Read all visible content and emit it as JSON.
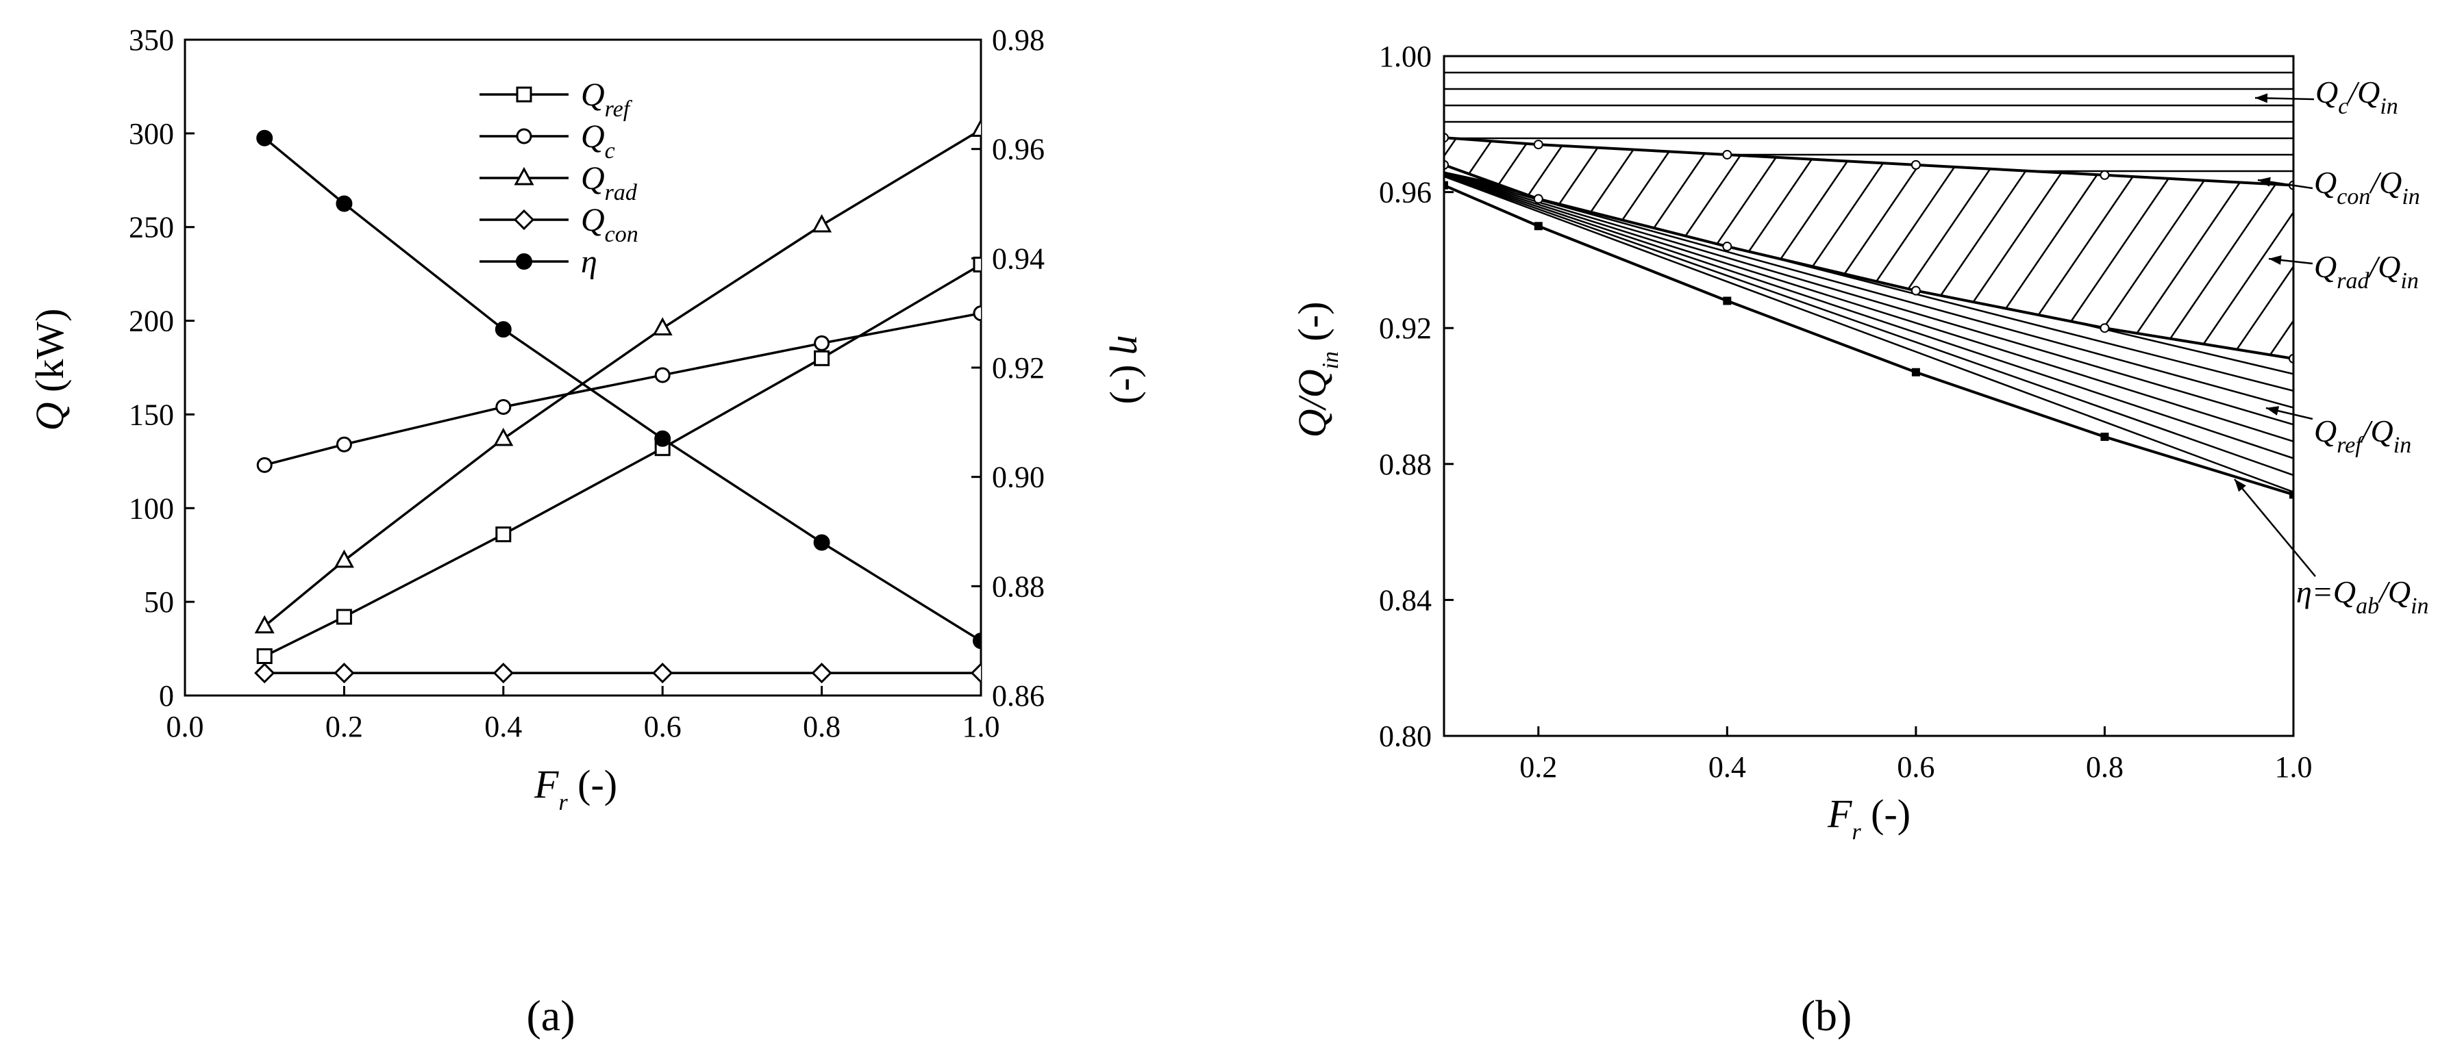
{
  "chart_data": [
    {
      "panel": "(a)",
      "type": "line",
      "xlabel": "F_r (-)",
      "x_label_main": "F",
      "x_label_sub": "r",
      "x_label_unit": " (-)",
      "ylabel": "Q (kW)",
      "y_label_main": "Q",
      "y_label_unit": " (kW)",
      "y2label": "η (-)",
      "y2_label_main": "η",
      "y2_label_unit": " (-)",
      "xlim": [
        0.0,
        1.0
      ],
      "ylim": [
        0,
        350
      ],
      "y2lim": [
        0.86,
        0.98
      ],
      "xticks": [
        "0.0",
        "0.2",
        "0.4",
        "0.6",
        "0.8",
        "1.0"
      ],
      "yticks": [
        "0",
        "50",
        "100",
        "150",
        "200",
        "250",
        "300",
        "350"
      ],
      "y2ticks": [
        "0.86",
        "0.88",
        "0.90",
        "0.92",
        "0.94",
        "0.96",
        "0.98"
      ],
      "x": [
        0.1,
        0.2,
        0.4,
        0.6,
        0.8,
        1.0
      ],
      "series": [
        {
          "name": "Q_ref",
          "label_main": "Q",
          "label_sub": "ref",
          "marker": "square",
          "axis": "left",
          "values": [
            21,
            42,
            86,
            132,
            180,
            230
          ]
        },
        {
          "name": "Q_c",
          "label_main": "Q",
          "label_sub": "c",
          "marker": "circle",
          "axis": "left",
          "values": [
            123,
            134,
            154,
            171,
            188,
            204
          ]
        },
        {
          "name": "Q_rad",
          "label_main": "Q",
          "label_sub": "rad",
          "marker": "triangle",
          "axis": "left",
          "values": [
            37,
            72,
            137,
            196,
            251,
            302
          ]
        },
        {
          "name": "Q_con",
          "label_main": "Q",
          "label_sub": "con",
          "marker": "diamond",
          "axis": "left",
          "values": [
            12,
            12,
            12,
            12,
            12,
            12
          ]
        },
        {
          "name": "η",
          "label_main": "η",
          "label_sub": "",
          "marker": "filled-circle",
          "axis": "right",
          "values": [
            0.962,
            0.95,
            0.927,
            0.907,
            0.888,
            0.87
          ]
        }
      ],
      "legend_position": "top-center"
    },
    {
      "panel": "(b)",
      "type": "area",
      "xlabel": "F_r (-)",
      "x_label_main": "F",
      "x_label_sub": "r",
      "x_label_unit": " (-)",
      "ylabel": "Q/Q_in (-)",
      "y_label_main": "Q/Q",
      "y_label_sub": "in",
      "y_label_unit": " (-)",
      "xlim": [
        0.1,
        1.0
      ],
      "ylim": [
        0.8,
        1.0
      ],
      "xticks": [
        "0.2",
        "0.4",
        "0.6",
        "0.8",
        "1.0"
      ],
      "yticks": [
        "0.80",
        "0.84",
        "0.88",
        "0.92",
        "0.96",
        "1.00"
      ],
      "x": [
        0.1,
        0.2,
        0.4,
        0.6,
        0.8,
        1.0
      ],
      "boundaries": [
        {
          "name": "top",
          "values": [
            1.0,
            1.0,
            1.0,
            1.0,
            1.0,
            1.0
          ]
        },
        {
          "name": "upper",
          "values": [
            0.976,
            0.974,
            0.971,
            0.968,
            0.965,
            0.962
          ]
        },
        {
          "name": "middle",
          "values": [
            0.968,
            0.958,
            0.944,
            0.931,
            0.92,
            0.911
          ]
        },
        {
          "name": "lower",
          "values": [
            0.962,
            0.95,
            0.928,
            0.907,
            0.888,
            0.871
          ]
        }
      ],
      "annotations": [
        {
          "main": "Q",
          "sub1": "c",
          "sep": "/Q",
          "sub2": "in"
        },
        {
          "main": "Q",
          "sub1": "con",
          "sep": "/Q",
          "sub2": "in"
        },
        {
          "main": "Q",
          "sub1": "rad",
          "sep": "/Q",
          "sub2": "in"
        },
        {
          "main": "Q",
          "sub1": "ref",
          "sep": "/Q",
          "sub2": "in"
        },
        {
          "main": "η=Q",
          "sub1": "ab",
          "sep": "/Q",
          "sub2": "in"
        }
      ]
    }
  ],
  "labels": {
    "panel_a": "(a)",
    "panel_b": "(b)"
  }
}
